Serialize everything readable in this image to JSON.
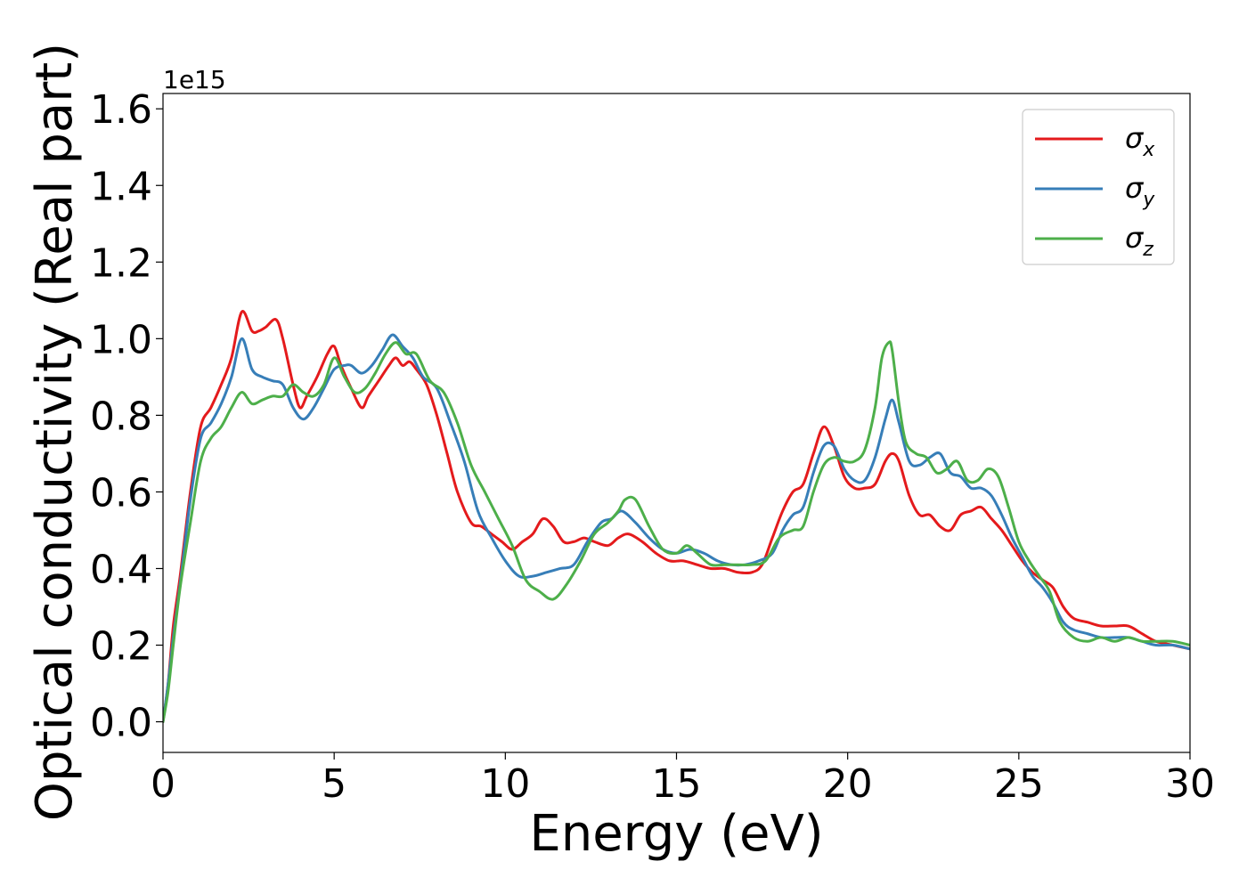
{
  "chart_data": {
    "type": "line",
    "xlabel": "Energy (eV)",
    "ylabel": "Optical conductivity (Real part)",
    "y_offset_label": "1e15",
    "xlim": [
      0,
      30
    ],
    "ylim": [
      -0.08,
      1.64
    ],
    "x_ticks": [
      0,
      5,
      10,
      15,
      20,
      25,
      30
    ],
    "x_tick_labels": [
      "0",
      "5",
      "10",
      "15",
      "20",
      "25",
      "30"
    ],
    "y_ticks": [
      0.0,
      0.2,
      0.4,
      0.6,
      0.8,
      1.0,
      1.2,
      1.4,
      1.6
    ],
    "y_tick_labels": [
      "0.0",
      "0.2",
      "0.4",
      "0.6",
      "0.8",
      "1.0",
      "1.2",
      "1.4",
      "1.6"
    ],
    "grid": false,
    "legend_position": "top-right",
    "series": [
      {
        "name": "σx",
        "name_base": "σ",
        "name_sub": "x",
        "color": "#e41a1c",
        "x": [
          0,
          0.15,
          0.3,
          0.5,
          0.8,
          1.1,
          1.4,
          1.7,
          2.0,
          2.3,
          2.6,
          2.8,
          3.0,
          3.3,
          3.5,
          3.8,
          4.0,
          4.2,
          4.5,
          4.8,
          5.0,
          5.2,
          5.5,
          5.8,
          6.0,
          6.3,
          6.6,
          6.8,
          7.0,
          7.2,
          7.4,
          7.7,
          8.0,
          8.3,
          8.6,
          9.0,
          9.3,
          9.6,
          9.9,
          10.2,
          10.5,
          10.8,
          11.1,
          11.4,
          11.7,
          12.0,
          12.3,
          12.6,
          13.0,
          13.3,
          13.6,
          14.0,
          14.4,
          14.8,
          15.2,
          15.6,
          16.0,
          16.4,
          16.8,
          17.2,
          17.5,
          17.8,
          18.1,
          18.4,
          18.7,
          19.0,
          19.3,
          19.6,
          19.9,
          20.2,
          20.5,
          20.8,
          21.1,
          21.3,
          21.5,
          21.8,
          22.1,
          22.4,
          22.7,
          23.0,
          23.3,
          23.6,
          23.9,
          24.2,
          24.5,
          24.8,
          25.1,
          25.4,
          25.7,
          26.0,
          26.3,
          26.6,
          27.0,
          27.4,
          27.8,
          28.2,
          28.6,
          29.0,
          29.5,
          30.0
        ],
        "y": [
          0.0,
          0.1,
          0.25,
          0.38,
          0.6,
          0.77,
          0.82,
          0.88,
          0.95,
          1.07,
          1.02,
          1.02,
          1.03,
          1.05,
          1.0,
          0.88,
          0.82,
          0.85,
          0.9,
          0.96,
          0.98,
          0.93,
          0.87,
          0.82,
          0.85,
          0.89,
          0.93,
          0.95,
          0.93,
          0.94,
          0.92,
          0.88,
          0.8,
          0.7,
          0.6,
          0.52,
          0.51,
          0.49,
          0.47,
          0.45,
          0.47,
          0.49,
          0.53,
          0.51,
          0.47,
          0.47,
          0.48,
          0.47,
          0.46,
          0.48,
          0.49,
          0.47,
          0.44,
          0.42,
          0.42,
          0.41,
          0.4,
          0.4,
          0.39,
          0.39,
          0.41,
          0.48,
          0.55,
          0.6,
          0.62,
          0.7,
          0.77,
          0.72,
          0.64,
          0.61,
          0.61,
          0.62,
          0.68,
          0.7,
          0.68,
          0.59,
          0.54,
          0.54,
          0.51,
          0.5,
          0.54,
          0.55,
          0.56,
          0.53,
          0.5,
          0.46,
          0.42,
          0.39,
          0.37,
          0.35,
          0.3,
          0.27,
          0.26,
          0.25,
          0.25,
          0.25,
          0.23,
          0.21,
          0.2,
          0.19
        ]
      },
      {
        "name": "σy",
        "name_base": "σ",
        "name_sub": "y",
        "color": "#377eb8",
        "x": [
          0,
          0.15,
          0.3,
          0.5,
          0.8,
          1.1,
          1.4,
          1.7,
          2.0,
          2.3,
          2.6,
          2.9,
          3.2,
          3.5,
          3.8,
          4.1,
          4.4,
          4.7,
          5.0,
          5.3,
          5.5,
          5.8,
          6.1,
          6.4,
          6.7,
          7.0,
          7.3,
          7.6,
          8.0,
          8.4,
          8.8,
          9.2,
          9.6,
          10.0,
          10.4,
          10.8,
          11.2,
          11.6,
          12.0,
          12.4,
          12.8,
          13.1,
          13.4,
          13.8,
          14.2,
          14.6,
          15.0,
          15.4,
          15.8,
          16.2,
          16.6,
          17.0,
          17.4,
          17.8,
          18.1,
          18.4,
          18.7,
          19.0,
          19.3,
          19.6,
          19.9,
          20.2,
          20.5,
          20.8,
          21.1,
          21.3,
          21.5,
          21.8,
          22.1,
          22.4,
          22.7,
          23.0,
          23.3,
          23.6,
          23.9,
          24.2,
          24.5,
          24.8,
          25.1,
          25.4,
          25.7,
          26.0,
          26.3,
          26.6,
          27.0,
          27.4,
          27.8,
          28.2,
          28.6,
          29.0,
          29.5,
          30.0
        ],
        "y": [
          0.0,
          0.1,
          0.22,
          0.36,
          0.58,
          0.74,
          0.78,
          0.83,
          0.9,
          1.0,
          0.92,
          0.9,
          0.89,
          0.88,
          0.82,
          0.79,
          0.82,
          0.87,
          0.92,
          0.93,
          0.93,
          0.91,
          0.93,
          0.97,
          1.01,
          0.98,
          0.95,
          0.9,
          0.87,
          0.78,
          0.68,
          0.55,
          0.48,
          0.42,
          0.38,
          0.38,
          0.39,
          0.4,
          0.41,
          0.47,
          0.52,
          0.53,
          0.55,
          0.52,
          0.48,
          0.45,
          0.44,
          0.45,
          0.44,
          0.42,
          0.41,
          0.41,
          0.42,
          0.44,
          0.5,
          0.54,
          0.56,
          0.65,
          0.72,
          0.72,
          0.66,
          0.63,
          0.63,
          0.69,
          0.79,
          0.84,
          0.78,
          0.68,
          0.67,
          0.69,
          0.7,
          0.65,
          0.64,
          0.61,
          0.61,
          0.59,
          0.54,
          0.48,
          0.43,
          0.38,
          0.35,
          0.31,
          0.26,
          0.24,
          0.23,
          0.22,
          0.22,
          0.22,
          0.21,
          0.2,
          0.2,
          0.19
        ]
      },
      {
        "name": "σz",
        "name_base": "σ",
        "name_sub": "z",
        "color": "#4daf4a",
        "x": [
          0,
          0.15,
          0.3,
          0.5,
          0.8,
          1.1,
          1.4,
          1.7,
          2.0,
          2.3,
          2.6,
          2.9,
          3.2,
          3.5,
          3.8,
          4.1,
          4.4,
          4.7,
          5.0,
          5.3,
          5.6,
          5.9,
          6.2,
          6.5,
          6.8,
          7.1,
          7.4,
          7.8,
          8.2,
          8.6,
          9.0,
          9.4,
          9.8,
          10.2,
          10.6,
          11.0,
          11.4,
          11.8,
          12.2,
          12.6,
          13.0,
          13.3,
          13.5,
          13.8,
          14.2,
          14.6,
          15.0,
          15.3,
          15.6,
          16.0,
          16.4,
          16.8,
          17.2,
          17.6,
          18.0,
          18.4,
          18.7,
          19.0,
          19.3,
          19.6,
          19.9,
          20.2,
          20.5,
          20.8,
          21.0,
          21.2,
          21.3,
          21.5,
          21.7,
          22.0,
          22.3,
          22.6,
          22.9,
          23.2,
          23.5,
          23.8,
          24.1,
          24.4,
          24.7,
          25.0,
          25.3,
          25.6,
          25.9,
          26.2,
          26.6,
          27.0,
          27.4,
          27.8,
          28.2,
          28.6,
          29.0,
          29.5,
          30.0
        ],
        "y": [
          0.0,
          0.08,
          0.2,
          0.35,
          0.52,
          0.68,
          0.74,
          0.77,
          0.82,
          0.86,
          0.83,
          0.84,
          0.85,
          0.85,
          0.88,
          0.86,
          0.85,
          0.88,
          0.95,
          0.9,
          0.86,
          0.87,
          0.91,
          0.96,
          0.99,
          0.96,
          0.96,
          0.89,
          0.86,
          0.78,
          0.67,
          0.6,
          0.53,
          0.46,
          0.37,
          0.34,
          0.32,
          0.36,
          0.42,
          0.49,
          0.52,
          0.55,
          0.58,
          0.58,
          0.51,
          0.45,
          0.44,
          0.46,
          0.44,
          0.41,
          0.41,
          0.41,
          0.41,
          0.42,
          0.48,
          0.5,
          0.51,
          0.6,
          0.67,
          0.69,
          0.68,
          0.68,
          0.71,
          0.82,
          0.95,
          0.99,
          0.97,
          0.83,
          0.73,
          0.7,
          0.69,
          0.65,
          0.66,
          0.68,
          0.63,
          0.63,
          0.66,
          0.64,
          0.56,
          0.47,
          0.42,
          0.38,
          0.34,
          0.26,
          0.22,
          0.21,
          0.22,
          0.21,
          0.22,
          0.21,
          0.21,
          0.21,
          0.2
        ]
      }
    ]
  }
}
